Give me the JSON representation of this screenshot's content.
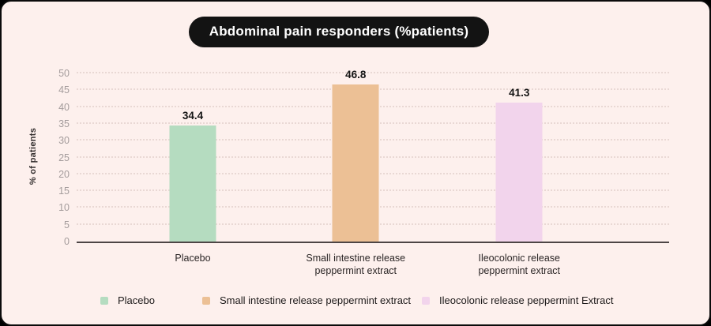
{
  "chart_data": {
    "type": "bar",
    "title": "Abdominal pain responders (%patients)",
    "ylabel": "% of patients",
    "categories": [
      "Placebo",
      "Small intestine release\npeppermint extract",
      "Ileocolonic release\npeppermint extract"
    ],
    "values": [
      34.4,
      46.8,
      41.3
    ],
    "value_labels": [
      "34.4",
      "46.8",
      "41.3"
    ],
    "bar_colors": [
      "#b5dcc0",
      "#ecc095",
      "#f2d4ec"
    ],
    "ylim": [
      0,
      50
    ],
    "ytick_step": 5,
    "ytick_labels": [
      "0",
      "5",
      "10",
      "15",
      "20",
      "25",
      "30",
      "35",
      "40",
      "45",
      "50"
    ],
    "grid": "horizontal-dotted",
    "legend_position": "bottom",
    "legend": [
      "Placebo",
      "Small intestine release peppermint extract",
      "Ileocolonic release peppermint Extract"
    ]
  },
  "colors": {
    "background": "#fdf0ed",
    "title_pill_bg": "#131313",
    "title_text": "#ffffff",
    "gridline": "#e9d8d4",
    "axis_line": "#4d4545",
    "tick_text": "#a49c9c",
    "label_text": "#2b2626"
  }
}
